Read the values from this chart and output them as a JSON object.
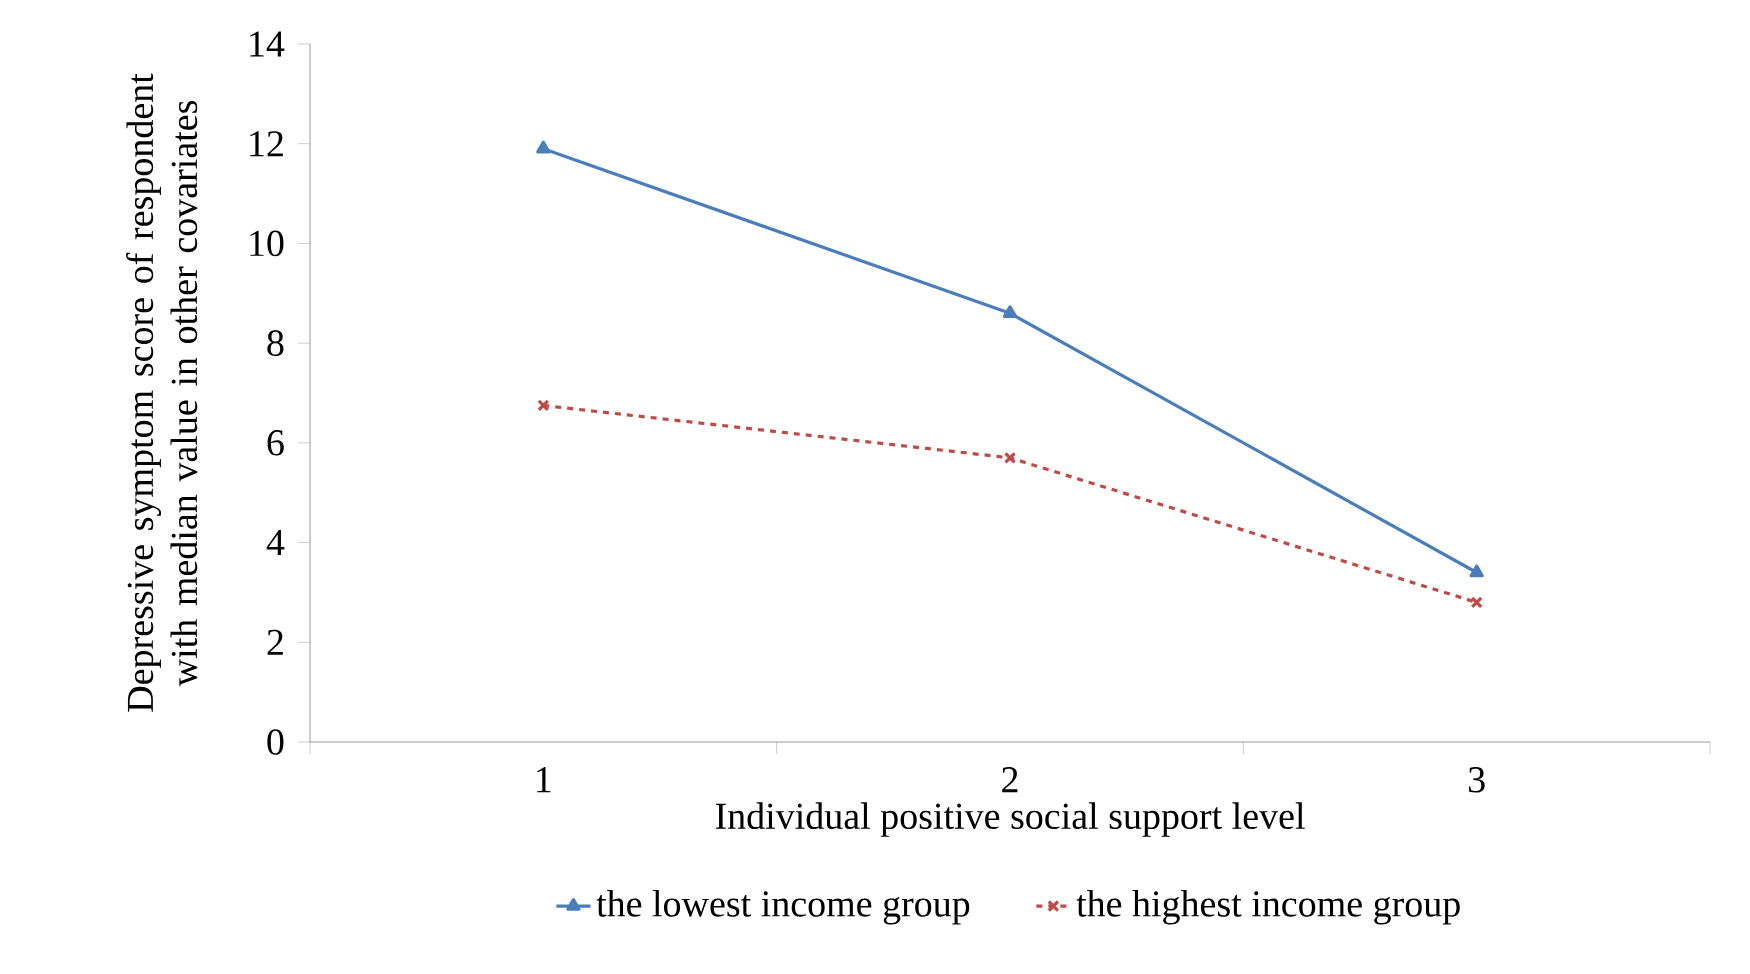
{
  "chart_data": {
    "type": "line",
    "xlabel": "Individual positive social support level",
    "ylabel": "Depressive symptom score of respondent with median value in other covariates",
    "categories": [
      "1",
      "2",
      "3"
    ],
    "series": [
      {
        "name": "the lowest income group",
        "color": "#4a7ebb",
        "values": [
          11.9,
          8.6,
          3.4
        ],
        "marker": "triangle",
        "line_style": "solid"
      },
      {
        "name": "the highest income group",
        "color": "#be4b48",
        "values": [
          6.75,
          5.7,
          2.8
        ],
        "marker": "cross",
        "line_style": "dashed"
      }
    ],
    "ylim": [
      0,
      14
    ],
    "yticks": [
      0,
      2,
      4,
      6,
      8,
      10,
      12,
      14
    ],
    "grid": false,
    "legend": "bottom"
  }
}
